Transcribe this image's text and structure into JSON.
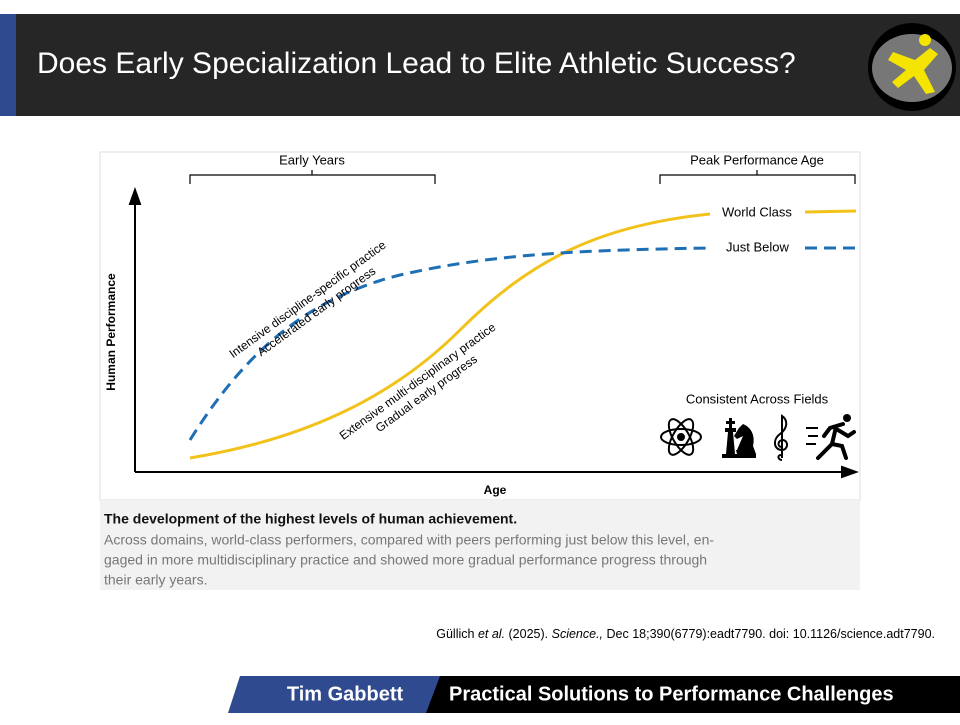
{
  "header": {
    "title": "Does Early Specialization Lead to Elite Athletic Success?"
  },
  "figure": {
    "brackets": [
      "Early Years",
      "Peak Performance Age"
    ],
    "y_axis_label": "Human Performance",
    "x_axis_label": "Age",
    "curves": [
      {
        "name": "World Class",
        "annotation": [
          "Extensive multi-disciplinary practice",
          "Gradual early progress"
        ]
      },
      {
        "name": "Just Below",
        "annotation": [
          "Intensive discipline-specific practice",
          "Accelerated early progress"
        ]
      }
    ],
    "icons_label": "Consistent Across Fields",
    "caption": {
      "title": "The development of the highest levels of human achievement.",
      "lines": [
        "Across domains, world-class performers, compared with peers performing just below this level, en-",
        "gaged in more multidisciplinary practice and showed more gradual performance progress through",
        "their early years."
      ]
    }
  },
  "citation": {
    "author": "Güllich ",
    "etal": "et al.",
    "year": " (2025). ",
    "journal": "Science.,",
    "details": " Dec 18;390(6779):eadt7790. doi: 10.1126/science.adt7790."
  },
  "footer": {
    "name": "Tim Gabbett",
    "tagline": "Practical Solutions to Performance Challenges"
  }
}
